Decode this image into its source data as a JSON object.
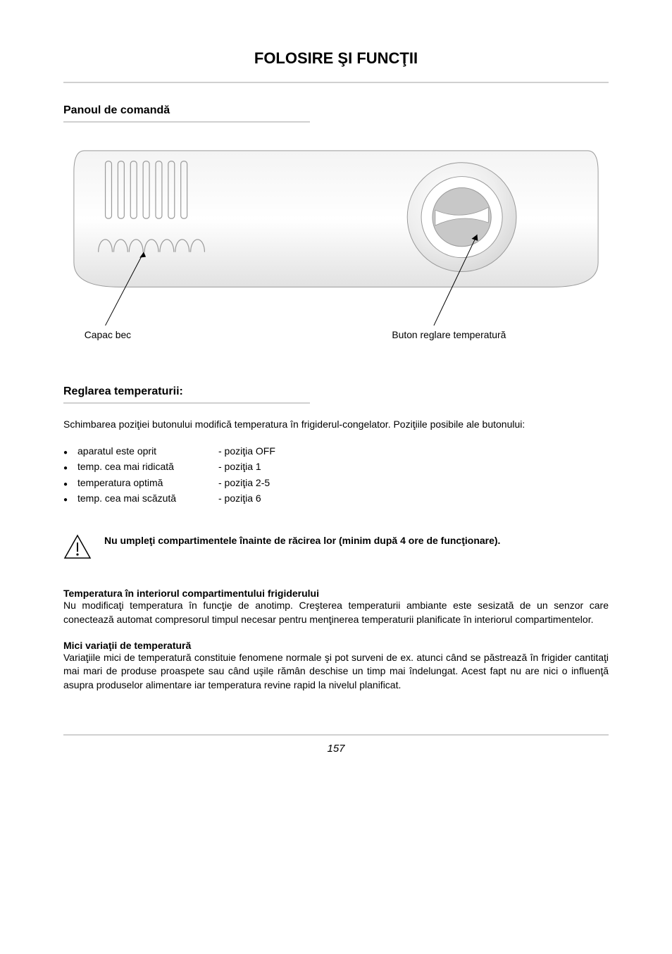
{
  "title": "FOLOSIRE ŞI FUNCŢII",
  "section_panel": "Panoul de comandă",
  "diagram": {
    "label_left": "Capac bec",
    "label_right": "Buton reglare temperatură",
    "colors": {
      "panel_fill_light": "#f4f4f4",
      "panel_fill_dark": "#e2e2e2",
      "stroke": "#9a9a9a",
      "leader": "#000000",
      "vent_stroke": "#9a9a9a",
      "knob_outer": "#d8d8d8",
      "knob_mid": "#eeeeee",
      "knob_inner": "#c8c8c8"
    }
  },
  "section_temp": "Reglarea temperaturii:",
  "intro_text": "Schimbarea poziţiei butonului modifică temperatura în frigiderul-congelator. Poziţiile posibile ale butonului:",
  "positions": [
    {
      "text": "aparatul este oprit",
      "pos": "- poziţia OFF"
    },
    {
      "text": "temp. cea mai ridicată",
      "pos": "- poziţia 1"
    },
    {
      "text": "temperatura optimă",
      "pos": "- poziţia 2-5"
    },
    {
      "text": "temp. cea mai scăzută",
      "pos": "- poziţia 6"
    }
  ],
  "warning_text": "Nu umpleţi compartimentele înainte de răcirea lor (minim după 4 ore de funcţionare).",
  "body": {
    "h1": "Temperatura în interiorul compartimentului frigiderului",
    "p1": "Nu modificaţi temperatura în funcţie de anotimp.  Creşterea temperaturii ambiante este sesizată de un senzor care conectează automat compresorul   timpul  necesar pentru menţinerea temperaturii planificate în interiorul compartimentelor.",
    "h2": "Mici variaţii de temperatură",
    "p2": "Variaţiile mici de temperatură constituie fenomene normale şi pot surveni de ex. atunci când se păstrează în frigider cantitaţi mai mari de produse proaspete sau când uşile rămân deschise un timp mai îndelungat. Acest fapt nu are nici o influenţă asupra produselor alimentare iar temperatura revine rapid la nivelul planificat."
  },
  "page_number": "157"
}
